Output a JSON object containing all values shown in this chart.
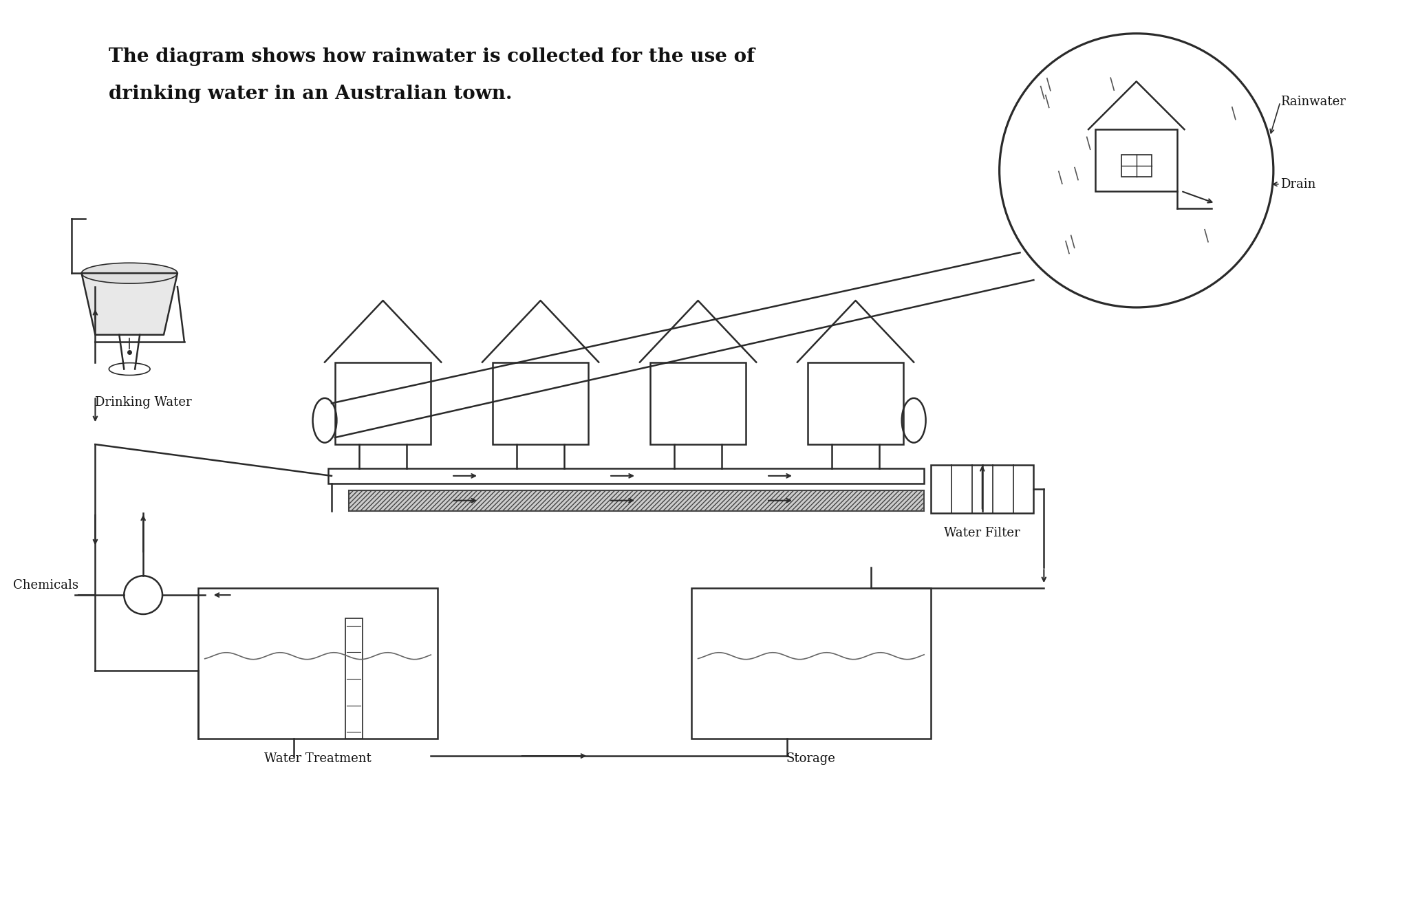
{
  "title_line1": "The diagram shows how rainwater is collected for the use of",
  "title_line2": "drinking water in an Australian town.",
  "bg_color": "#ffffff",
  "ink_color": "#2a2a2a",
  "label_drinking_water": "Drinking Water",
  "label_chemicals": "Chemicals",
  "label_water_treatment": "Water Treatment",
  "label_storage": "Storage",
  "label_water_filter": "Water Filter",
  "label_rainwater": "Rainwater",
  "label_drain": "Drain",
  "figsize": [
    20.48,
    13.26
  ],
  "dpi": 100
}
